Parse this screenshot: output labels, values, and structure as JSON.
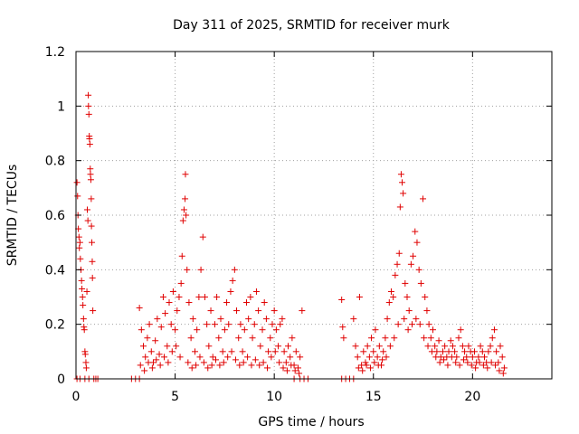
{
  "chart_data": {
    "type": "scatter",
    "title": "Day 311 of 2025, SRMTID for receiver murk",
    "xlabel": "GPS time / hours",
    "ylabel": "SRMTID / TECUs",
    "xlim": [
      0,
      24
    ],
    "ylim": [
      0,
      1.2
    ],
    "x_ticks": [
      0,
      5,
      10,
      15,
      20
    ],
    "x_tick_labels": [
      "0",
      "5",
      "10",
      "15",
      "20"
    ],
    "y_ticks": [
      0,
      0.2,
      0.4,
      0.6,
      0.8,
      1,
      1.2
    ],
    "y_tick_labels": [
      "0",
      "0.2",
      "0.4",
      "0.6",
      "0.8",
      "1",
      "1.2"
    ],
    "grid": true,
    "marker": "+",
    "series": [
      {
        "name": "SRMTID",
        "color": "#e00000",
        "points": [
          [
            0.05,
            0.72
          ],
          [
            0.08,
            0.67
          ],
          [
            0.1,
            0.6
          ],
          [
            0.12,
            0.55
          ],
          [
            0.15,
            0.52
          ],
          [
            0.17,
            0.48
          ],
          [
            0.2,
            0.5
          ],
          [
            0.22,
            0.44
          ],
          [
            0.25,
            0.4
          ],
          [
            0.28,
            0.36
          ],
          [
            0.3,
            0.33
          ],
          [
            0.33,
            0.3
          ],
          [
            0.35,
            0.27
          ],
          [
            0.38,
            0.22
          ],
          [
            0.4,
            0.19
          ],
          [
            0.42,
            0.18
          ],
          [
            0.45,
            0.1
          ],
          [
            0.47,
            0.09
          ],
          [
            0.5,
            0.06
          ],
          [
            0.52,
            0.04
          ],
          [
            0.55,
            0.32
          ],
          [
            0.57,
            0.62
          ],
          [
            0.6,
            0.58
          ],
          [
            0.62,
            1.04
          ],
          [
            0.63,
            1.0
          ],
          [
            0.65,
            0.97
          ],
          [
            0.67,
            0.89
          ],
          [
            0.68,
            0.88
          ],
          [
            0.7,
            0.86
          ],
          [
            0.72,
            0.77
          ],
          [
            0.73,
            0.75
          ],
          [
            0.75,
            0.73
          ],
          [
            0.77,
            0.66
          ],
          [
            0.78,
            0.56
          ],
          [
            0.8,
            0.5
          ],
          [
            0.82,
            0.43
          ],
          [
            0.83,
            0.37
          ],
          [
            0.85,
            0.25
          ],
          [
            0.05,
            0.0
          ],
          [
            0.2,
            0.0
          ],
          [
            0.45,
            0.0
          ],
          [
            0.65,
            0.0
          ],
          [
            0.9,
            0.0
          ],
          [
            1.0,
            0.0
          ],
          [
            1.1,
            0.0
          ],
          [
            2.8,
            0.0
          ],
          [
            3.0,
            0.0
          ],
          [
            3.2,
            0.0
          ],
          [
            3.2,
            0.26
          ],
          [
            3.3,
            0.18
          ],
          [
            3.4,
            0.12
          ],
          [
            3.5,
            0.08
          ],
          [
            3.6,
            0.15
          ],
          [
            3.7,
            0.2
          ],
          [
            3.8,
            0.1
          ],
          [
            3.9,
            0.06
          ],
          [
            4.0,
            0.14
          ],
          [
            4.1,
            0.22
          ],
          [
            4.2,
            0.09
          ],
          [
            4.3,
            0.19
          ],
          [
            4.4,
            0.3
          ],
          [
            4.5,
            0.24
          ],
          [
            4.6,
            0.12
          ],
          [
            4.7,
            0.28
          ],
          [
            4.8,
            0.2
          ],
          [
            4.9,
            0.32
          ],
          [
            5.0,
            0.18
          ],
          [
            5.1,
            0.25
          ],
          [
            5.2,
            0.3
          ],
          [
            5.3,
            0.35
          ],
          [
            5.35,
            0.45
          ],
          [
            5.4,
            0.58
          ],
          [
            5.45,
            0.62
          ],
          [
            5.5,
            0.66
          ],
          [
            5.52,
            0.75
          ],
          [
            5.55,
            0.6
          ],
          [
            5.6,
            0.4
          ],
          [
            5.7,
            0.28
          ],
          [
            5.8,
            0.15
          ],
          [
            5.9,
            0.22
          ],
          [
            6.0,
            0.1
          ],
          [
            6.1,
            0.18
          ],
          [
            6.2,
            0.3
          ],
          [
            6.3,
            0.4
          ],
          [
            6.4,
            0.52
          ],
          [
            6.5,
            0.3
          ],
          [
            6.6,
            0.2
          ],
          [
            6.7,
            0.12
          ],
          [
            6.8,
            0.25
          ],
          [
            6.9,
            0.08
          ],
          [
            7.0,
            0.2
          ],
          [
            7.1,
            0.3
          ],
          [
            7.2,
            0.15
          ],
          [
            7.3,
            0.22
          ],
          [
            7.4,
            0.1
          ],
          [
            7.5,
            0.18
          ],
          [
            7.6,
            0.28
          ],
          [
            7.7,
            0.2
          ],
          [
            7.8,
            0.32
          ],
          [
            7.9,
            0.36
          ],
          [
            8.0,
            0.4
          ],
          [
            8.1,
            0.25
          ],
          [
            8.2,
            0.15
          ],
          [
            8.3,
            0.2
          ],
          [
            8.4,
            0.1
          ],
          [
            8.5,
            0.18
          ],
          [
            8.6,
            0.28
          ],
          [
            8.7,
            0.22
          ],
          [
            8.8,
            0.3
          ],
          [
            8.9,
            0.15
          ],
          [
            9.0,
            0.2
          ],
          [
            9.1,
            0.32
          ],
          [
            9.2,
            0.25
          ],
          [
            9.3,
            0.12
          ],
          [
            9.4,
            0.18
          ],
          [
            9.5,
            0.28
          ],
          [
            9.6,
            0.22
          ],
          [
            9.7,
            0.1
          ],
          [
            9.8,
            0.15
          ],
          [
            9.9,
            0.2
          ],
          [
            10.0,
            0.25
          ],
          [
            10.1,
            0.18
          ],
          [
            10.2,
            0.12
          ],
          [
            10.3,
            0.2
          ],
          [
            10.4,
            0.22
          ],
          [
            10.5,
            0.1
          ],
          [
            10.6,
            0.06
          ],
          [
            10.7,
            0.12
          ],
          [
            10.8,
            0.08
          ],
          [
            10.9,
            0.15
          ],
          [
            11.0,
            0.05
          ],
          [
            11.1,
            0.1
          ],
          [
            11.2,
            0.04
          ],
          [
            11.3,
            0.08
          ],
          [
            11.4,
            0.25
          ],
          [
            3.25,
            0.05
          ],
          [
            3.45,
            0.03
          ],
          [
            3.65,
            0.06
          ],
          [
            3.85,
            0.04
          ],
          [
            4.05,
            0.07
          ],
          [
            4.25,
            0.05
          ],
          [
            4.45,
            0.08
          ],
          [
            4.65,
            0.06
          ],
          [
            4.85,
            0.1
          ],
          [
            5.05,
            0.12
          ],
          [
            5.25,
            0.08
          ],
          [
            5.65,
            0.06
          ],
          [
            5.85,
            0.04
          ],
          [
            6.05,
            0.05
          ],
          [
            6.25,
            0.08
          ],
          [
            6.45,
            0.06
          ],
          [
            6.65,
            0.04
          ],
          [
            6.85,
            0.05
          ],
          [
            7.05,
            0.07
          ],
          [
            7.25,
            0.05
          ],
          [
            7.45,
            0.06
          ],
          [
            7.65,
            0.08
          ],
          [
            7.85,
            0.1
          ],
          [
            8.05,
            0.07
          ],
          [
            8.25,
            0.05
          ],
          [
            8.45,
            0.06
          ],
          [
            8.65,
            0.08
          ],
          [
            8.85,
            0.05
          ],
          [
            9.05,
            0.07
          ],
          [
            9.25,
            0.05
          ],
          [
            9.45,
            0.06
          ],
          [
            9.65,
            0.04
          ],
          [
            9.85,
            0.08
          ],
          [
            10.05,
            0.1
          ],
          [
            10.25,
            0.06
          ],
          [
            10.45,
            0.04
          ],
          [
            10.65,
            0.03
          ],
          [
            10.85,
            0.05
          ],
          [
            11.05,
            0.03
          ],
          [
            11.25,
            0.02
          ],
          [
            11.0,
            0.0
          ],
          [
            11.3,
            0.0
          ],
          [
            11.5,
            0.0
          ],
          [
            11.7,
            0.0
          ],
          [
            13.4,
            0.0
          ],
          [
            13.6,
            0.0
          ],
          [
            13.8,
            0.0
          ],
          [
            14.0,
            0.0
          ],
          [
            13.4,
            0.29
          ],
          [
            13.45,
            0.19
          ],
          [
            13.5,
            0.15
          ],
          [
            14.0,
            0.22
          ],
          [
            14.1,
            0.12
          ],
          [
            14.2,
            0.08
          ],
          [
            14.3,
            0.3
          ],
          [
            14.4,
            0.05
          ],
          [
            14.5,
            0.1
          ],
          [
            14.6,
            0.06
          ],
          [
            14.7,
            0.12
          ],
          [
            14.8,
            0.08
          ],
          [
            14.9,
            0.15
          ],
          [
            15.0,
            0.1
          ],
          [
            15.1,
            0.18
          ],
          [
            15.2,
            0.08
          ],
          [
            15.3,
            0.12
          ],
          [
            15.4,
            0.05
          ],
          [
            15.5,
            0.1
          ],
          [
            15.6,
            0.15
          ],
          [
            15.7,
            0.22
          ],
          [
            15.8,
            0.28
          ],
          [
            15.9,
            0.32
          ],
          [
            16.0,
            0.3
          ],
          [
            16.1,
            0.38
          ],
          [
            16.2,
            0.42
          ],
          [
            16.3,
            0.46
          ],
          [
            16.35,
            0.63
          ],
          [
            16.4,
            0.75
          ],
          [
            16.45,
            0.72
          ],
          [
            16.5,
            0.68
          ],
          [
            16.6,
            0.35
          ],
          [
            16.7,
            0.3
          ],
          [
            16.8,
            0.25
          ],
          [
            16.9,
            0.42
          ],
          [
            17.0,
            0.45
          ],
          [
            17.1,
            0.54
          ],
          [
            17.2,
            0.5
          ],
          [
            17.3,
            0.4
          ],
          [
            17.4,
            0.35
          ],
          [
            17.5,
            0.66
          ],
          [
            17.6,
            0.3
          ],
          [
            17.7,
            0.25
          ],
          [
            17.8,
            0.2
          ],
          [
            17.9,
            0.15
          ],
          [
            18.0,
            0.18
          ],
          [
            18.1,
            0.12
          ],
          [
            18.2,
            0.1
          ],
          [
            18.3,
            0.14
          ],
          [
            18.4,
            0.08
          ],
          [
            18.5,
            0.1
          ],
          [
            18.6,
            0.12
          ],
          [
            18.7,
            0.08
          ],
          [
            18.8,
            0.1
          ],
          [
            18.9,
            0.14
          ],
          [
            19.0,
            0.12
          ],
          [
            19.1,
            0.1
          ],
          [
            19.2,
            0.08
          ],
          [
            19.3,
            0.15
          ],
          [
            19.4,
            0.18
          ],
          [
            19.5,
            0.12
          ],
          [
            19.6,
            0.1
          ],
          [
            19.7,
            0.08
          ],
          [
            19.8,
            0.12
          ],
          [
            19.9,
            0.1
          ],
          [
            20.0,
            0.08
          ],
          [
            20.1,
            0.1
          ],
          [
            20.2,
            0.06
          ],
          [
            20.3,
            0.08
          ],
          [
            20.4,
            0.12
          ],
          [
            20.5,
            0.1
          ],
          [
            20.6,
            0.08
          ],
          [
            20.7,
            0.06
          ],
          [
            20.8,
            0.1
          ],
          [
            20.9,
            0.12
          ],
          [
            21.0,
            0.15
          ],
          [
            21.1,
            0.18
          ],
          [
            21.2,
            0.1
          ],
          [
            21.3,
            0.06
          ],
          [
            21.4,
            0.12
          ],
          [
            21.5,
            0.08
          ],
          [
            21.6,
            0.04
          ],
          [
            14.25,
            0.04
          ],
          [
            14.45,
            0.03
          ],
          [
            14.65,
            0.05
          ],
          [
            14.85,
            0.04
          ],
          [
            15.05,
            0.06
          ],
          [
            15.25,
            0.05
          ],
          [
            15.45,
            0.07
          ],
          [
            15.65,
            0.08
          ],
          [
            15.85,
            0.12
          ],
          [
            16.05,
            0.15
          ],
          [
            16.25,
            0.2
          ],
          [
            16.55,
            0.22
          ],
          [
            16.75,
            0.18
          ],
          [
            16.95,
            0.2
          ],
          [
            17.15,
            0.22
          ],
          [
            17.35,
            0.2
          ],
          [
            17.55,
            0.15
          ],
          [
            17.75,
            0.12
          ],
          [
            17.95,
            0.1
          ],
          [
            18.15,
            0.08
          ],
          [
            18.35,
            0.06
          ],
          [
            18.55,
            0.07
          ],
          [
            18.75,
            0.05
          ],
          [
            18.95,
            0.08
          ],
          [
            19.15,
            0.06
          ],
          [
            19.35,
            0.05
          ],
          [
            19.55,
            0.07
          ],
          [
            19.75,
            0.06
          ],
          [
            19.95,
            0.05
          ],
          [
            20.15,
            0.04
          ],
          [
            20.35,
            0.06
          ],
          [
            20.55,
            0.05
          ],
          [
            20.75,
            0.04
          ],
          [
            20.95,
            0.06
          ],
          [
            21.15,
            0.05
          ],
          [
            21.35,
            0.03
          ],
          [
            21.55,
            0.02
          ]
        ]
      }
    ]
  }
}
